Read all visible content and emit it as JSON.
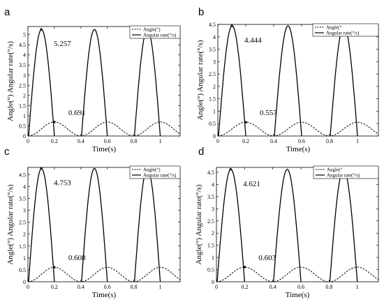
{
  "chart_data": [
    {
      "panel": "a",
      "type": "line",
      "xlabel": "Time(s)",
      "ylabel": "Angle(°) Angular rate(°/s)",
      "xlim": [
        0,
        1.15
      ],
      "ylim": [
        0,
        5.4
      ],
      "xticks": [
        "0",
        "0.2",
        "0.4",
        "0.6",
        "0.8",
        "1"
      ],
      "yticks": [
        "0",
        "0.5",
        "1",
        "1.5",
        "2",
        "2.5",
        "3",
        "3.5",
        "4",
        "4.5",
        "5"
      ],
      "xtick_values": [
        0,
        0.2,
        0.4,
        0.6,
        0.8,
        1
      ],
      "ytick_values": [
        0,
        0.5,
        1,
        1.5,
        2,
        2.5,
        3,
        3.5,
        4,
        4.5,
        5
      ],
      "series": [
        {
          "name": "Angle(°)",
          "style": "dashed",
          "peak": 0.691
        },
        {
          "name": "Angular rate(°/s)",
          "style": "solid",
          "peak": 5.257
        }
      ],
      "annotations": [
        {
          "text": "5.257",
          "x": 0.1,
          "y": 5.257
        },
        {
          "text": "0.691",
          "x": 0.2,
          "y": 0.691
        }
      ],
      "grid": false,
      "legend": "top-right"
    },
    {
      "panel": "b",
      "type": "line",
      "xlabel": "Time(s)",
      "ylabel": "Angle(°) Angular rate(°/s)",
      "xlim": [
        0,
        1.15
      ],
      "ylim": [
        0,
        4.5
      ],
      "xticks": [
        "0",
        "0.2",
        "0.4",
        "0.6",
        "0.8",
        "1"
      ],
      "yticks": [
        "0",
        "0.5",
        "1",
        "1.5",
        "2",
        "2.5",
        "3",
        "3.5",
        "4",
        "4.5"
      ],
      "xtick_values": [
        0,
        0.2,
        0.4,
        0.6,
        0.8,
        1
      ],
      "ytick_values": [
        0,
        0.5,
        1,
        1.5,
        2,
        2.5,
        3,
        3.5,
        4,
        4.5
      ],
      "series": [
        {
          "name": "Angle(°",
          "style": "dashed",
          "peak": 0.557
        },
        {
          "name": "Angular rate(°/s)",
          "style": "solid",
          "peak": 4.444
        }
      ],
      "annotations": [
        {
          "text": "4.444",
          "x": 0.1,
          "y": 4.444
        },
        {
          "text": "0.557",
          "x": 0.2,
          "y": 0.557
        }
      ],
      "grid": false,
      "legend": "top-right"
    },
    {
      "panel": "c",
      "type": "line",
      "xlabel": "Time(s)",
      "ylabel": "Angle(°) Angular rate(°/s)",
      "xlim": [
        0,
        1.15
      ],
      "ylim": [
        0,
        4.8
      ],
      "xticks": [
        "0",
        "0.2",
        "0.4",
        "0.6",
        "0.8",
        "1"
      ],
      "yticks": [
        "0",
        "0.5",
        "1",
        "1.5",
        "2",
        "2.5",
        "3",
        "3.5",
        "4",
        "4.5"
      ],
      "xtick_values": [
        0,
        0.2,
        0.4,
        0.6,
        0.8,
        1
      ],
      "ytick_values": [
        0,
        0.5,
        1,
        1.5,
        2,
        2.5,
        3,
        3.5,
        4,
        4.5
      ],
      "series": [
        {
          "name": "Angle(°)",
          "style": "dashed",
          "peak": 0.608
        },
        {
          "name": "Angular rate(°/s)",
          "style": "solid",
          "peak": 4.753
        }
      ],
      "annotations": [
        {
          "text": "4.753",
          "x": 0.1,
          "y": 4.753
        },
        {
          "text": "0.608",
          "x": 0.2,
          "y": 0.608
        }
      ],
      "grid": false,
      "legend": "top-right"
    },
    {
      "panel": "d",
      "type": "line",
      "xlabel": "Time(s)",
      "ylabel": "Angle(°) Angular rate(°/s)",
      "xlim": [
        0,
        1.15
      ],
      "ylim": [
        0,
        4.7
      ],
      "xticks": [
        "0",
        "0.2",
        "0.4",
        "0.6",
        "0.8",
        "1"
      ],
      "yticks": [
        "0",
        "0.5",
        "1",
        "1.5",
        "2",
        "2.5",
        "3",
        "3.5",
        "4",
        "4.5"
      ],
      "xtick_values": [
        0,
        0.2,
        0.4,
        0.6,
        0.8,
        1
      ],
      "ytick_values": [
        0,
        0.5,
        1,
        1.5,
        2,
        2.5,
        3,
        3.5,
        4,
        4.5
      ],
      "series": [
        {
          "name": "Angle(°",
          "style": "dashed",
          "peak": 0.603
        },
        {
          "name": "Angular rate(°/s)",
          "style": "solid",
          "peak": 4.621
        }
      ],
      "annotations": [
        {
          "text": "4.621",
          "x": 0.1,
          "y": 4.621
        },
        {
          "text": "0.603",
          "x": 0.2,
          "y": 0.603
        }
      ],
      "grid": false,
      "legend": "top-right"
    }
  ]
}
